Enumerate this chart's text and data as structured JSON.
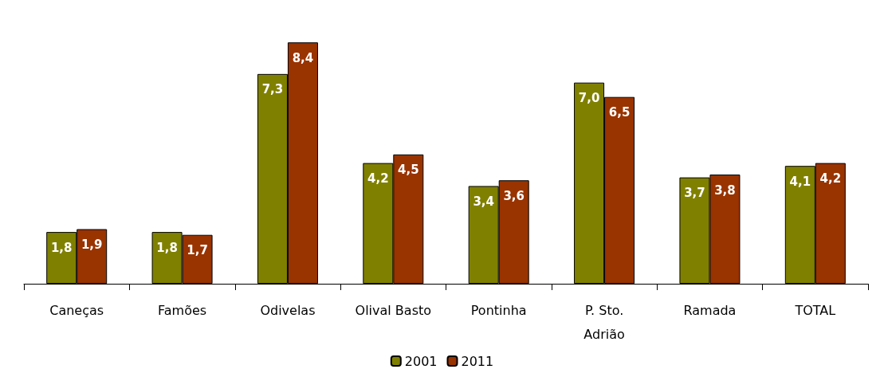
{
  "chart_data": {
    "type": "bar",
    "categories": [
      "Caneças",
      "Famões",
      "Odivelas",
      "Olival Basto",
      "Pontinha",
      "P. Sto. Adrião",
      "Ramada",
      "TOTAL"
    ],
    "series": [
      {
        "name": "2001",
        "color": "#808000",
        "values": [
          1.8,
          1.8,
          7.3,
          4.2,
          3.4,
          7.0,
          3.7,
          4.1
        ],
        "value_labels": [
          "1,8",
          "1,8",
          "7,3",
          "4,2",
          "3,4",
          "7,0",
          "3,7",
          "4,1"
        ]
      },
      {
        "name": "2011",
        "color": "#993300",
        "values": [
          1.9,
          1.7,
          8.4,
          4.5,
          3.6,
          6.5,
          3.8,
          4.2
        ],
        "value_labels": [
          "1,9",
          "1,7",
          "8,4",
          "4,5",
          "3,6",
          "6,5",
          "3,8",
          "4,2"
        ]
      }
    ],
    "tick_labels": "x",
    "legend": "bottom"
  }
}
